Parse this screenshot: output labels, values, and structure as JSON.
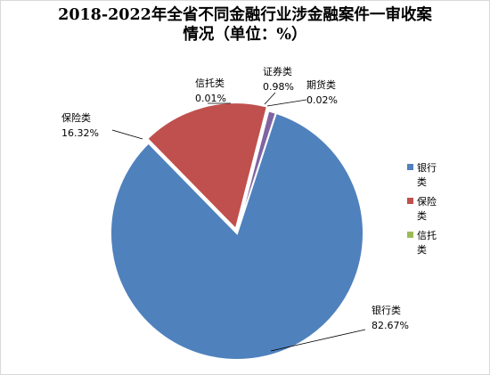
{
  "chart_data": {
    "type": "pie",
    "title_lines": [
      "2018-2022年全省不同金融行业涉金融案件一审收案",
      "情况（单位：%）"
    ],
    "slices": [
      {
        "name": "银行类",
        "value": 82.67,
        "label": "82.67%",
        "color": "#4f81bd"
      },
      {
        "name": "保险类",
        "value": 16.32,
        "label": "16.32%",
        "color": "#c0504d"
      },
      {
        "name": "信托类",
        "value": 0.01,
        "label": "0.01%",
        "color": "#9bbb59"
      },
      {
        "name": "证券类",
        "value": 0.98,
        "label": "0.98%",
        "color": "#8064a2"
      },
      {
        "name": "期货类",
        "value": 0.02,
        "label": "0.02%",
        "color": "#4bacc6"
      }
    ],
    "legend": {
      "placement": "right",
      "entries": [
        {
          "lines": [
            "银行",
            "类"
          ],
          "color": "#4f81bd"
        },
        {
          "lines": [
            "保险",
            "类"
          ],
          "color": "#c0504d"
        },
        {
          "lines": [
            "信托",
            "类"
          ],
          "color": "#9bbb59"
        }
      ]
    }
  }
}
